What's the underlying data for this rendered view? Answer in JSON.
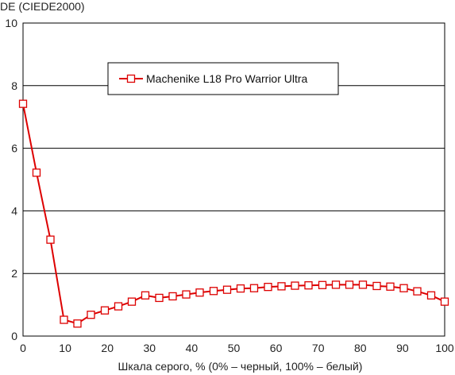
{
  "chart_data": {
    "type": "line",
    "ylabel": "DE (CIEDE2000)",
    "xlabel": "Шкала серого, % (0% – черный, 100% – белый)",
    "xlim": [
      0,
      100
    ],
    "ylim": [
      0,
      10
    ],
    "x_ticks": [
      "0",
      "10",
      "20",
      "30",
      "40",
      "50",
      "60",
      "70",
      "80",
      "90",
      "100"
    ],
    "y_ticks": [
      "0",
      "2",
      "4",
      "6",
      "8",
      "10"
    ],
    "grid": "horizontal",
    "legend_position": "top-center",
    "series": [
      {
        "name": "Machenike L18 Pro Warrior Ultra",
        "color": "#dd0000",
        "marker": "square-open",
        "x": [
          0,
          3.2,
          6.5,
          9.7,
          12.9,
          16.1,
          19.4,
          22.6,
          25.8,
          29.0,
          32.3,
          35.5,
          38.7,
          41.9,
          45.2,
          48.4,
          51.6,
          54.8,
          58.1,
          61.3,
          64.5,
          67.7,
          71.0,
          74.2,
          77.4,
          80.6,
          83.9,
          87.1,
          90.3,
          93.5,
          96.8,
          100
        ],
        "values": [
          7.42,
          5.22,
          3.08,
          0.52,
          0.4,
          0.68,
          0.82,
          0.95,
          1.1,
          1.3,
          1.22,
          1.27,
          1.33,
          1.39,
          1.44,
          1.48,
          1.52,
          1.53,
          1.57,
          1.59,
          1.61,
          1.62,
          1.63,
          1.64,
          1.64,
          1.64,
          1.6,
          1.58,
          1.53,
          1.43,
          1.3,
          1.1
        ]
      }
    ]
  }
}
